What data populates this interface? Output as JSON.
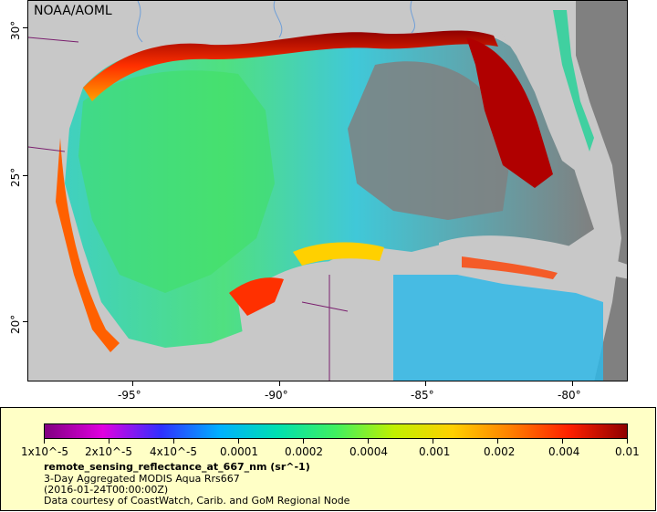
{
  "map": {
    "credit": "NOAA/AOML",
    "lon_labels": [
      "-95°",
      "-90°",
      "-85°",
      "-80°"
    ],
    "lat_labels": [
      "30°",
      "25°",
      "20°"
    ],
    "colors": {
      "land": "#c8c8c8",
      "no_data": "#808080",
      "boundary": "#7a1f6e",
      "river": "#6f9fd8"
    }
  },
  "legend": {
    "colorbar_colors": [
      "#800080",
      "#e000e0",
      "#3030ff",
      "#00b0ff",
      "#00e0b0",
      "#40f060",
      "#c0f000",
      "#ffd000",
      "#ff8000",
      "#ff2000",
      "#900000"
    ],
    "tick_labels": [
      "1x10^-5",
      "2x10^-5",
      "4x10^-5",
      "0.0001",
      "0.0002",
      "0.0004",
      "0.001",
      "0.002",
      "0.004",
      "0.01"
    ],
    "title": "remote_sensing_reflectance_at_667_nm (sr^-1)",
    "subtitle": "3-Day Aggregated MODIS Aqua Rrs667",
    "date": "(2016-01-24T00:00:00Z)",
    "courtesy": "Data courtesy of CoastWatch, Carib. and GoM Regional Node"
  }
}
